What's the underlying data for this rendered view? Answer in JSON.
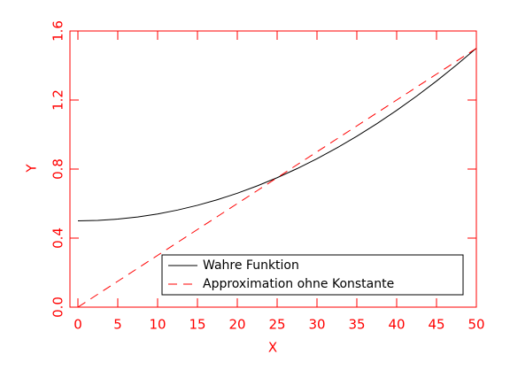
{
  "chart_data": {
    "type": "line",
    "x_label": "X",
    "y_label": "Y",
    "x": [
      0,
      2.5,
      5,
      7.5,
      10,
      12.5,
      15,
      17.5,
      20,
      22.5,
      25,
      27.5,
      30,
      32.5,
      35,
      37.5,
      40,
      42.5,
      45,
      47.5,
      50
    ],
    "series": [
      {
        "name": "Wahre Funktion",
        "color": "#000000",
        "dash": "solid",
        "values": [
          0.5,
          0.5025,
          0.51,
          0.5225,
          0.54,
          0.5625,
          0.59,
          0.6225,
          0.66,
          0.7025,
          0.75,
          0.8025,
          0.86,
          0.9225,
          0.99,
          1.0625,
          1.14,
          1.2225,
          1.31,
          1.4025,
          1.5
        ]
      },
      {
        "name": "Approximation ohne Konstante",
        "color": "#ff0000",
        "dash": "dashed",
        "values": [
          0,
          0.075,
          0.15,
          0.225,
          0.3,
          0.375,
          0.45,
          0.525,
          0.6,
          0.675,
          0.75,
          0.825,
          0.9,
          0.975,
          1.05,
          1.125,
          1.2,
          1.275,
          1.35,
          1.425,
          1.5
        ]
      }
    ],
    "xlim": [
      -1,
      50
    ],
    "ylim": [
      0,
      1.6
    ],
    "xticks": [
      0,
      5,
      10,
      15,
      20,
      25,
      30,
      35,
      40,
      45,
      50
    ],
    "yticks": [
      {
        "value": 0,
        "label": "0.0"
      },
      0.4,
      0.8,
      1.2,
      1.6
    ],
    "axis_color": "#ff0000",
    "legend": "lower right",
    "grid": false
  }
}
